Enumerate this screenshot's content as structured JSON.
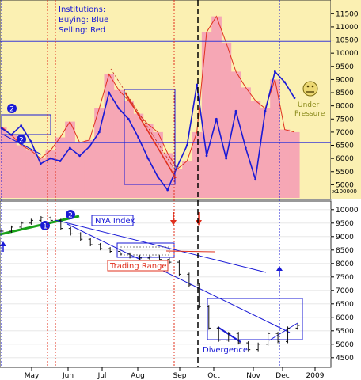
{
  "chart_data": [
    {
      "type": "area",
      "legend_lines": [
        "Institutions:",
        "Buying: Blue",
        "Selling: Red"
      ],
      "y_unit_label": "x100000",
      "y_ticks": [
        5000,
        5500,
        6000,
        6500,
        7000,
        7500,
        8000,
        8500,
        9000,
        9500,
        10000,
        10500,
        11000,
        11500
      ],
      "ylim": [
        4500,
        11900
      ],
      "colors": {
        "background": "#fbf0b2",
        "selling_fill": "#f6a7b5",
        "buying_line": "#1a1ad6",
        "level_line": "#3a3ad6"
      },
      "horizontal_levels": [
        10450,
        6600
      ],
      "series": [
        {
          "name": "Selling: Red",
          "values": [
            7200,
            6900,
            6500,
            6300,
            6000,
            6300,
            6800,
            7400,
            6600,
            6700,
            7900,
            9200,
            8600,
            8200,
            7700,
            7300,
            7000,
            6200,
            5600,
            5900,
            7000,
            10800,
            11400,
            10400,
            9300,
            8700,
            8200,
            7900,
            9000,
            7100,
            7000
          ]
        },
        {
          "name": "Buying: Blue",
          "values": [
            7150,
            6900,
            7250,
            6650,
            5800,
            6000,
            5900,
            6400,
            6100,
            6450,
            7000,
            8500,
            7900,
            7500,
            6800,
            6000,
            5300,
            4800,
            5700,
            6500,
            8800,
            6100,
            7500,
            6000,
            7800,
            6400,
            5200,
            7800,
            9300,
            8900,
            8300
          ]
        },
        {
          "name": "Selling: Red (trend)",
          "values": [
            6700,
            5550
          ]
        }
      ],
      "annotations": [
        {
          "type": "face",
          "text": "Under\nPressure",
          "position": "right"
        },
        {
          "type": "marker",
          "text": "2"
        },
        {
          "type": "marker",
          "text": "2"
        }
      ]
    },
    {
      "type": "line",
      "y_ticks": [
        4500,
        5000,
        5500,
        6000,
        6500,
        7000,
        7500,
        8000,
        8500,
        9000,
        9500,
        10000
      ],
      "ylim": [
        4200,
        10200
      ],
      "x_tick_labels": [
        "May",
        "Jun",
        "Jul",
        "Aug",
        "Sep",
        "Oct",
        "Nov",
        "Dec",
        "2009"
      ],
      "series": [
        {
          "name": "NYA Index",
          "values": [
            9200,
            9350,
            9500,
            9600,
            9700,
            9600,
            9300,
            9100,
            8900,
            8700,
            8550,
            8450,
            8350,
            8250,
            8200,
            8250,
            8150,
            8050,
            7600,
            7200,
            6400,
            5600,
            5150,
            5400,
            5050,
            4800,
            5000,
            5400,
            5100,
            5600,
            5700
          ]
        }
      ],
      "labels": {
        "index": "NYA Index",
        "range": "Trading Range",
        "divergence": "Divergence"
      },
      "markers": [
        "1",
        "2"
      ]
    }
  ]
}
